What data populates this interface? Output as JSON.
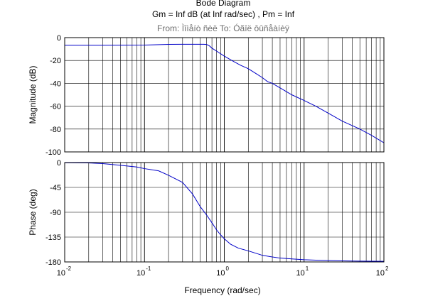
{
  "title": "Bode Diagram",
  "subtitle": "Gm = Inf dB (at Inf rad/sec) ,  Pm = Inf",
  "io_label": "From: Ìîìåíò ñèë  To: Óãîë ôûñåàíèÿ",
  "colors": {
    "line": "#0000c8",
    "grid": "#000000",
    "frame": "#000000",
    "io_label": "#6e6e6e"
  },
  "chart_data": [
    {
      "type": "line",
      "name": "magnitude",
      "xscale": "log",
      "xlim": [
        0.01,
        100
      ],
      "ylim": [
        -100,
        0
      ],
      "ylabel": "Magnitude (dB)",
      "grid": true,
      "yticks": [
        {
          "v": 0,
          "label": "0"
        },
        {
          "v": -20,
          "label": "-20"
        },
        {
          "v": -40,
          "label": "-40"
        },
        {
          "v": -60,
          "label": "-60"
        },
        {
          "v": -80,
          "label": "-80"
        },
        {
          "v": -100,
          "label": "-100"
        }
      ],
      "x": [
        0.01,
        0.03,
        0.1,
        0.2,
        0.3,
        0.4,
        0.5,
        0.55,
        0.6,
        0.65,
        0.7,
        0.8,
        1.0,
        1.3,
        1.6,
        2.0,
        2.5,
        3.0,
        3.5,
        4.0,
        5.0,
        7.0,
        10.0,
        14.0,
        20.0,
        30.0,
        50.0,
        70.0,
        100.0
      ],
      "y": [
        -6.7,
        -6.7,
        -6.5,
        -5.9,
        -5.8,
        -5.8,
        -5.8,
        -5.8,
        -6.0,
        -7.2,
        -9.2,
        -11.8,
        -16.2,
        -20.8,
        -24.2,
        -27.2,
        -31.5,
        -35.0,
        -38.6,
        -40.0,
        -44.0,
        -50.0,
        -55.0,
        -60.0,
        -66.0,
        -73.0,
        -80.0,
        -85.5,
        -92.0
      ]
    },
    {
      "type": "line",
      "name": "phase",
      "xscale": "log",
      "xlim": [
        0.01,
        100
      ],
      "ylim": [
        -180,
        0
      ],
      "ylabel": "Phase (deg)",
      "xlabel": "Frequency  (rad/sec)",
      "grid": true,
      "yticks": [
        {
          "v": 0,
          "label": "0"
        },
        {
          "v": -45,
          "label": "-45"
        },
        {
          "v": -90,
          "label": "-90"
        },
        {
          "v": -135,
          "label": "-135"
        },
        {
          "v": -180,
          "label": "-180"
        }
      ],
      "xticks": [
        {
          "v": 0.01,
          "base": "10",
          "exp": "-2"
        },
        {
          "v": 0.1,
          "base": "10",
          "exp": "-1"
        },
        {
          "v": 1,
          "base": "10",
          "exp": "0"
        },
        {
          "v": 10,
          "base": "10",
          "exp": "1"
        },
        {
          "v": 100,
          "base": "10",
          "exp": "2"
        }
      ],
      "x": [
        0.01,
        0.02,
        0.03,
        0.05,
        0.08,
        0.1,
        0.15,
        0.2,
        0.3,
        0.4,
        0.5,
        0.6,
        0.7,
        0.8,
        0.9,
        1.0,
        1.2,
        1.5,
        2.0,
        3.0,
        4.0,
        5.0,
        7.0,
        10.0,
        15.0,
        20.0,
        30.0,
        50.0,
        100.0
      ],
      "y": [
        -0.3,
        -0.7,
        -2.0,
        -5.0,
        -8.0,
        -11.0,
        -15.0,
        -23.0,
        -36.0,
        -57.0,
        -80.0,
        -95.0,
        -109.0,
        -122.0,
        -131.0,
        -138.0,
        -148.0,
        -155.0,
        -160.0,
        -168.0,
        -171.0,
        -173.0,
        -174.5,
        -176.0,
        -177.0,
        -177.5,
        -178.0,
        -178.5,
        -178.8
      ]
    }
  ]
}
